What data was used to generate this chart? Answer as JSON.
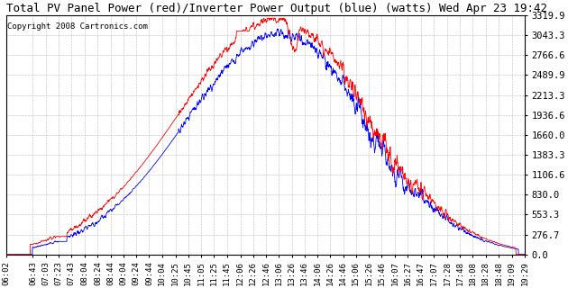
{
  "title": "Total PV Panel Power (red)/Inverter Power Output (blue) (watts) Wed Apr 23 19:42",
  "copyright": "Copyright 2008 Cartronics.com",
  "background_color": "#ffffff",
  "plot_bg_color": "#ffffff",
  "grid_color": "#bbbbbb",
  "red_color": "#ff0000",
  "blue_color": "#0000ff",
  "ymax": 3319.9,
  "ymin": 0.0,
  "yticks": [
    0.0,
    276.7,
    553.3,
    830.0,
    1106.6,
    1383.3,
    1660.0,
    1936.6,
    2213.3,
    2489.9,
    2766.6,
    3043.3,
    3319.9
  ],
  "xtick_labels": [
    "06:02",
    "06:43",
    "07:03",
    "07:23",
    "07:43",
    "08:04",
    "08:24",
    "08:44",
    "09:04",
    "09:24",
    "09:44",
    "10:04",
    "10:25",
    "10:45",
    "11:05",
    "11:25",
    "11:45",
    "12:06",
    "12:26",
    "12:46",
    "13:06",
    "13:26",
    "13:46",
    "14:06",
    "14:26",
    "14:46",
    "15:06",
    "15:26",
    "15:46",
    "16:07",
    "16:27",
    "16:47",
    "17:07",
    "17:28",
    "17:48",
    "18:08",
    "18:28",
    "18:48",
    "19:09",
    "19:29"
  ],
  "title_fontsize": 9,
  "copyright_fontsize": 6.5,
  "tick_fontsize": 6.5,
  "ytick_fontsize": 7.5
}
